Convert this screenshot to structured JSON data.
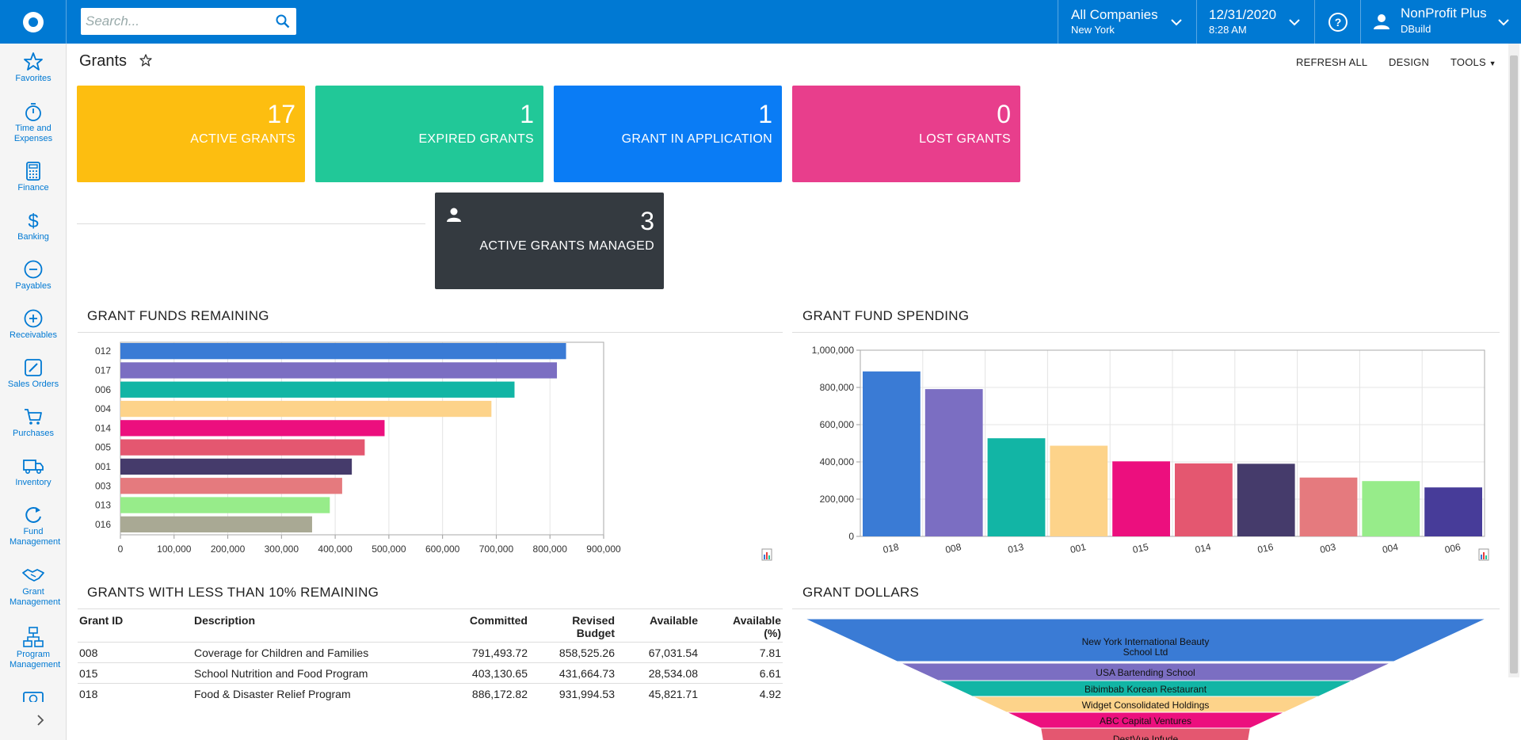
{
  "header": {
    "search_placeholder": "Search...",
    "company": {
      "name": "All Companies",
      "branch": "New York"
    },
    "date": {
      "value": "12/31/2020",
      "time": "8:28 AM"
    },
    "user": {
      "name": "NonProfit Plus",
      "tenant": "DBuild"
    }
  },
  "sidebar": {
    "items": [
      {
        "label": "Favorites",
        "icon": "star-icon"
      },
      {
        "label": "Time and Expenses",
        "icon": "stopwatch-icon"
      },
      {
        "label": "Finance",
        "icon": "calculator-icon"
      },
      {
        "label": "Banking",
        "icon": "dollar-icon"
      },
      {
        "label": "Payables",
        "icon": "minus-circle-icon"
      },
      {
        "label": "Receivables",
        "icon": "plus-circle-icon"
      },
      {
        "label": "Sales Orders",
        "icon": "pencil-icon"
      },
      {
        "label": "Purchases",
        "icon": "cart-icon"
      },
      {
        "label": "Inventory",
        "icon": "truck-icon"
      },
      {
        "label": "Fund Management",
        "icon": "refresh-icon"
      },
      {
        "label": "Grant Management",
        "icon": "handshake-icon"
      },
      {
        "label": "Program Management",
        "icon": "org-chart-icon"
      },
      {
        "label": "",
        "icon": "money-icon"
      }
    ]
  },
  "page": {
    "title": "Grants",
    "toolbar": {
      "refresh_all": "REFRESH ALL",
      "design": "DESIGN",
      "tools": "TOOLS"
    }
  },
  "tiles": [
    {
      "value": "17",
      "label": "ACTIVE GRANTS",
      "color": "#fdbe10"
    },
    {
      "value": "1",
      "label": "EXPIRED GRANTS",
      "color": "#21c898"
    },
    {
      "value": "1",
      "label": "GRANT IN APPLICATION",
      "color": "#0a7cf5"
    },
    {
      "value": "0",
      "label": "LOST GRANTS",
      "color": "#e83e8c"
    },
    {
      "value": "3",
      "label": "ACTIVE GRANTS MANAGED",
      "color": "#343a40"
    }
  ],
  "sections": {
    "funds_remaining": "GRANT FUNDS REMAINING",
    "fund_spending": "GRANT FUND SPENDING",
    "less_than_10": "GRANTS WITH LESS THAN 10% REMAINING",
    "grant_dollars": "GRANT DOLLARS"
  },
  "chart_data": [
    {
      "type": "bar",
      "orientation": "horizontal",
      "title": "GRANT FUNDS REMAINING",
      "categories": [
        "012",
        "017",
        "006",
        "004",
        "014",
        "005",
        "001",
        "003",
        "013",
        "016"
      ],
      "values": [
        830000,
        813000,
        734000,
        691000,
        492000,
        455000,
        431000,
        413000,
        390000,
        357000
      ],
      "colors": [
        "#3a7bd5",
        "#7b6ec2",
        "#12b5a5",
        "#fdd38a",
        "#ec0f7e",
        "#e45770",
        "#453b6b",
        "#e57a7e",
        "#97ec8a",
        "#a9a994"
      ],
      "xlim": [
        0,
        900000
      ],
      "xticks": [
        "0",
        "100,000",
        "200,000",
        "300,000",
        "400,000",
        "500,000",
        "600,000",
        "700,000",
        "800,000",
        "900,000"
      ],
      "grid": true
    },
    {
      "type": "bar",
      "title": "GRANT FUND SPENDING",
      "categories": [
        "018",
        "008",
        "013",
        "001",
        "015",
        "014",
        "016",
        "003",
        "004",
        "006"
      ],
      "values": [
        886000,
        791000,
        527000,
        487000,
        403000,
        392000,
        390000,
        316000,
        297000,
        263000
      ],
      "colors": [
        "#3a7bd5",
        "#7b6ec2",
        "#12b5a5",
        "#fdd38a",
        "#ec0f7e",
        "#e45770",
        "#453b6b",
        "#e57a7e",
        "#97ec8a",
        "#473c99"
      ],
      "ylim": [
        0,
        1000000
      ],
      "yticks": [
        "0",
        "200,000",
        "400,000",
        "600,000",
        "800,000",
        "1,000,000"
      ],
      "grid": true
    },
    {
      "type": "funnel",
      "title": "GRANT DOLLARS",
      "categories": [
        "New York International Beauty School Ltd",
        "USA Bartending School",
        "Bibimbab Korean Restaurant",
        "Widget Consolidated Holdings",
        "ABC Capital Ventures",
        "DestVue Infude"
      ],
      "colors": [
        "#3a7bd5",
        "#7b6ec2",
        "#12b5a5",
        "#fdd38a",
        "#ec0f7e",
        "#e45770"
      ]
    }
  ],
  "table": {
    "headers": [
      "Grant ID",
      "Description",
      "Committed",
      "Revised Budget",
      "Available",
      "Available (%)"
    ],
    "rows": [
      [
        "008",
        "Coverage for Children and Families",
        "791,493.72",
        "858,525.26",
        "67,031.54",
        "7.81"
      ],
      [
        "015",
        "School Nutrition and Food Program",
        "403,130.65",
        "431,664.73",
        "28,534.08",
        "6.61"
      ],
      [
        "018",
        "Food & Disaster Relief Program",
        "886,172.82",
        "931,994.53",
        "45,821.71",
        "4.92"
      ]
    ]
  }
}
